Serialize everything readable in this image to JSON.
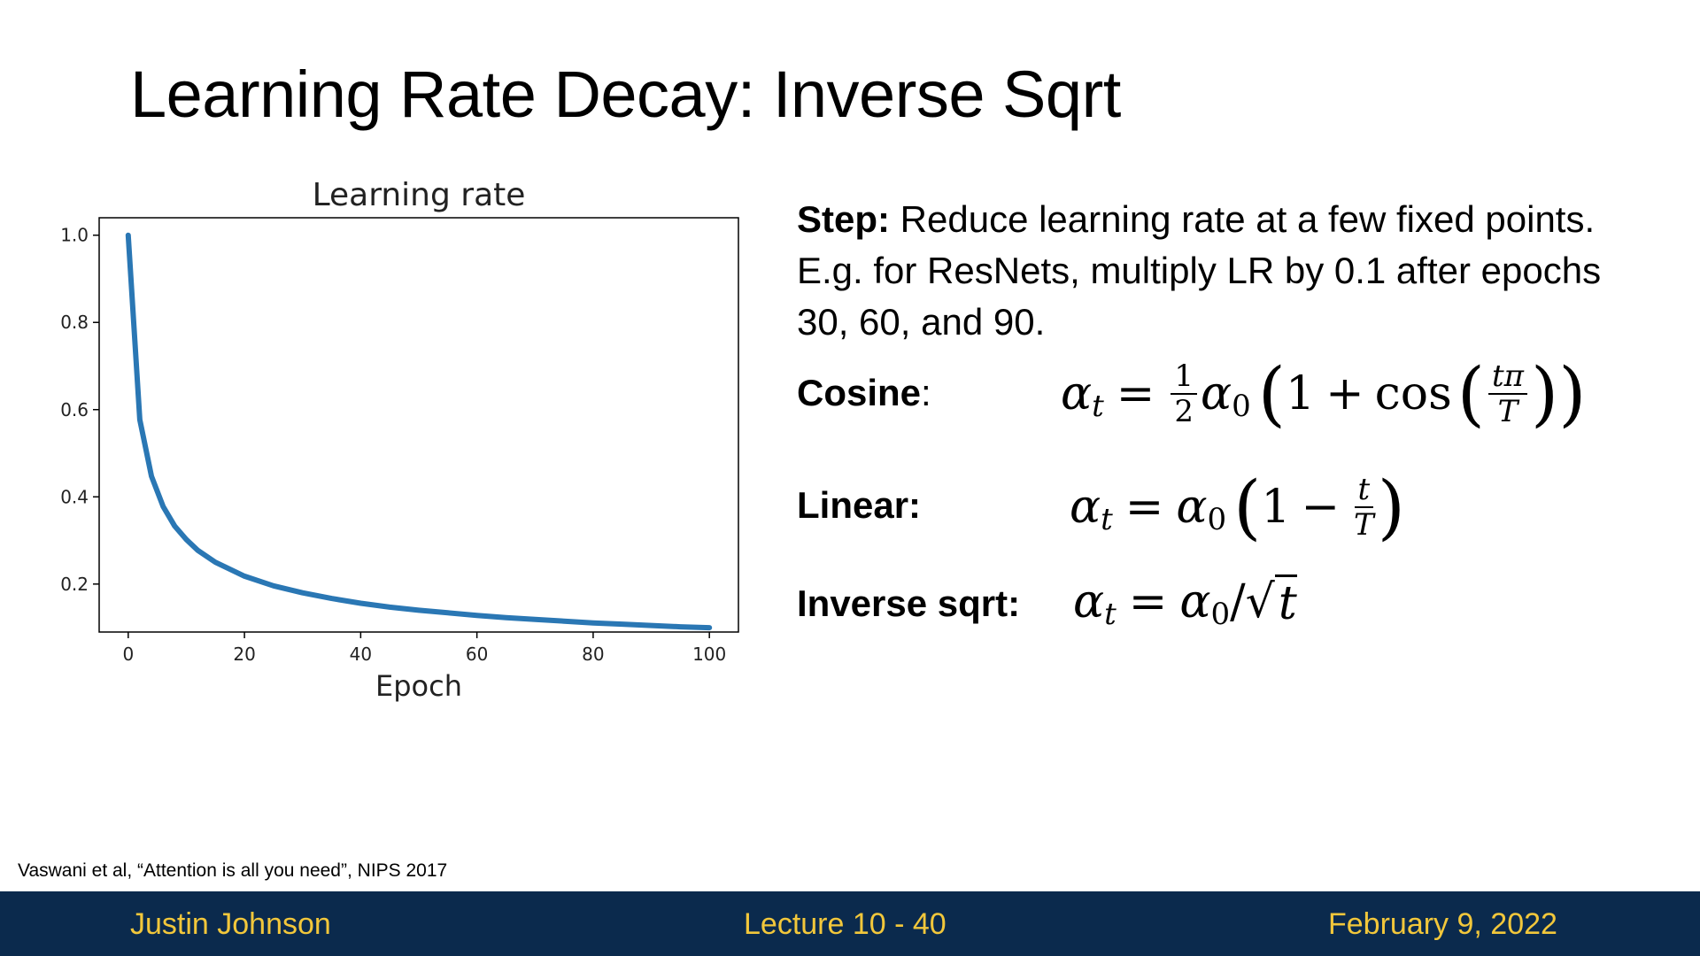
{
  "slide": {
    "title_bold": "Learning Rate Decay",
    "title_rest": ": Inverse Sqrt",
    "step_label": "Step:",
    "step_text": " Reduce learning rate at a few fixed points. E.g. for ResNets, multiply LR by 0.1 after epochs 30, 60, and 90.",
    "cosine_label": "Cosine",
    "cosine_colon": ":",
    "linear_label": "Linear:",
    "inverse_label": "Inverse sqrt:",
    "citation": "Vaswani et al, “Attention is all you need”, NIPS 2017"
  },
  "formulas": {
    "alpha": "α",
    "sub_t": "t",
    "sub_0": "0",
    "eq": "=",
    "half_num": "1",
    "half_den": "2",
    "one": "1",
    "plus": "+",
    "minus": "−",
    "cos": "cos",
    "tpi": "tπ",
    "T": "T",
    "t": "t",
    "slash": "/",
    "sqrt": "√"
  },
  "footer": {
    "author": "Justin Johnson",
    "lecture": "Lecture 10 - 40",
    "date": "February 9, 2022"
  },
  "chart_data": {
    "type": "line",
    "title": "Learning rate",
    "xlabel": "Epoch",
    "ylabel": "",
    "xlim": [
      -5,
      105
    ],
    "ylim": [
      0.09,
      1.04
    ],
    "xticks": [
      0,
      20,
      40,
      60,
      80,
      100
    ],
    "yticks": [
      0.2,
      0.4,
      0.6,
      0.8,
      1.0
    ],
    "ytick_labels": [
      "0.2",
      "0.4",
      "0.6",
      "0.8",
      "1.0"
    ],
    "grid": false,
    "color": "#2a77b4",
    "series": [
      {
        "x": [
          0,
          2,
          4,
          6,
          8,
          10,
          12,
          15,
          20,
          25,
          30,
          35,
          40,
          45,
          50,
          55,
          60,
          65,
          70,
          75,
          80,
          85,
          90,
          95,
          100
        ],
        "values": [
          1.0,
          0.577,
          0.447,
          0.378,
          0.333,
          0.302,
          0.277,
          0.25,
          0.218,
          0.196,
          0.18,
          0.167,
          0.156,
          0.147,
          0.14,
          0.134,
          0.128,
          0.123,
          0.119,
          0.115,
          0.111,
          0.108,
          0.105,
          0.102,
          0.1
        ]
      }
    ]
  }
}
